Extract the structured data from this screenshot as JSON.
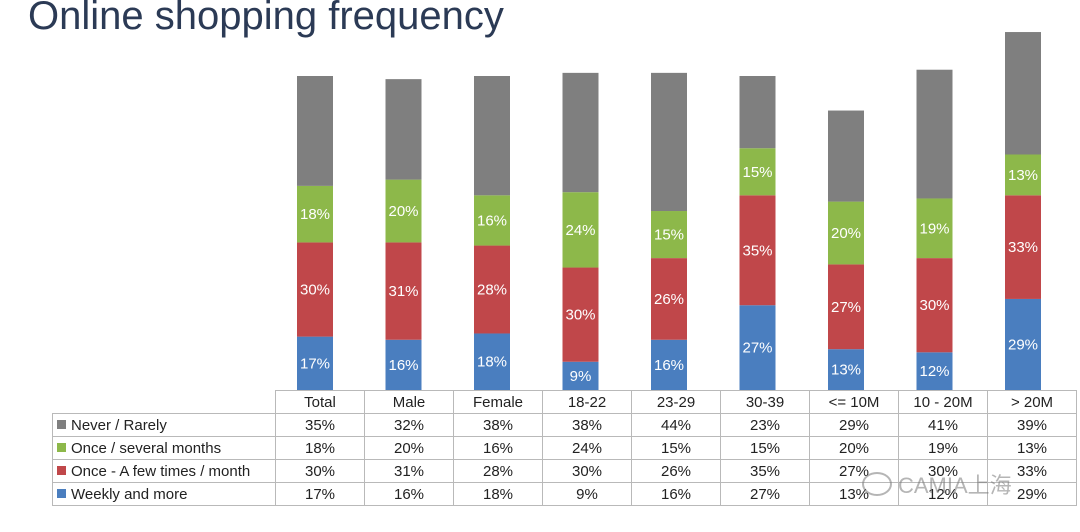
{
  "title": "Online shopping frequency",
  "chart_data": {
    "type": "bar",
    "stacked": true,
    "percent_stacked": true,
    "categories": [
      "Total",
      "Male",
      "Female",
      "18-22",
      "23-29",
      "30-39",
      "<= 10M",
      "10 - 20M",
      "> 20M"
    ],
    "series": [
      {
        "name": "Never / Rarely",
        "color": "#7f7f7f",
        "values": [
          35,
          32,
          38,
          38,
          44,
          23,
          29,
          41,
          39
        ],
        "display": [
          "35%",
          "32%",
          "38%",
          "38%",
          "44%",
          "23%",
          "29%",
          "41%",
          "39%"
        ]
      },
      {
        "name": "Once / several months",
        "color": "#8db84a",
        "values": [
          18,
          20,
          16,
          24,
          15,
          15,
          20,
          19,
          13
        ],
        "display": [
          "18%",
          "20%",
          "16%",
          "24%",
          "15%",
          "15%",
          "20%",
          "19%",
          "13%"
        ]
      },
      {
        "name": "Once - A few times / month",
        "color": "#c0474a",
        "values": [
          30,
          31,
          28,
          30,
          26,
          35,
          27,
          30,
          33
        ],
        "display": [
          "30%",
          "31%",
          "28%",
          "30%",
          "26%",
          "35%",
          "27%",
          "30%",
          "33%"
        ]
      },
      {
        "name": "Weekly and more",
        "color": "#4a7ebf",
        "values": [
          17,
          16,
          18,
          9,
          16,
          27,
          13,
          12,
          29
        ],
        "display": [
          "17%",
          "16%",
          "18%",
          "9%",
          "16%",
          "27%",
          "13%",
          "12%",
          "29%"
        ]
      }
    ],
    "data_labels_on": [
      "Once / several months",
      "Once - A few times / month",
      "Weekly and more"
    ],
    "legend": "data-table"
  },
  "watermark": "CAMIA上海"
}
